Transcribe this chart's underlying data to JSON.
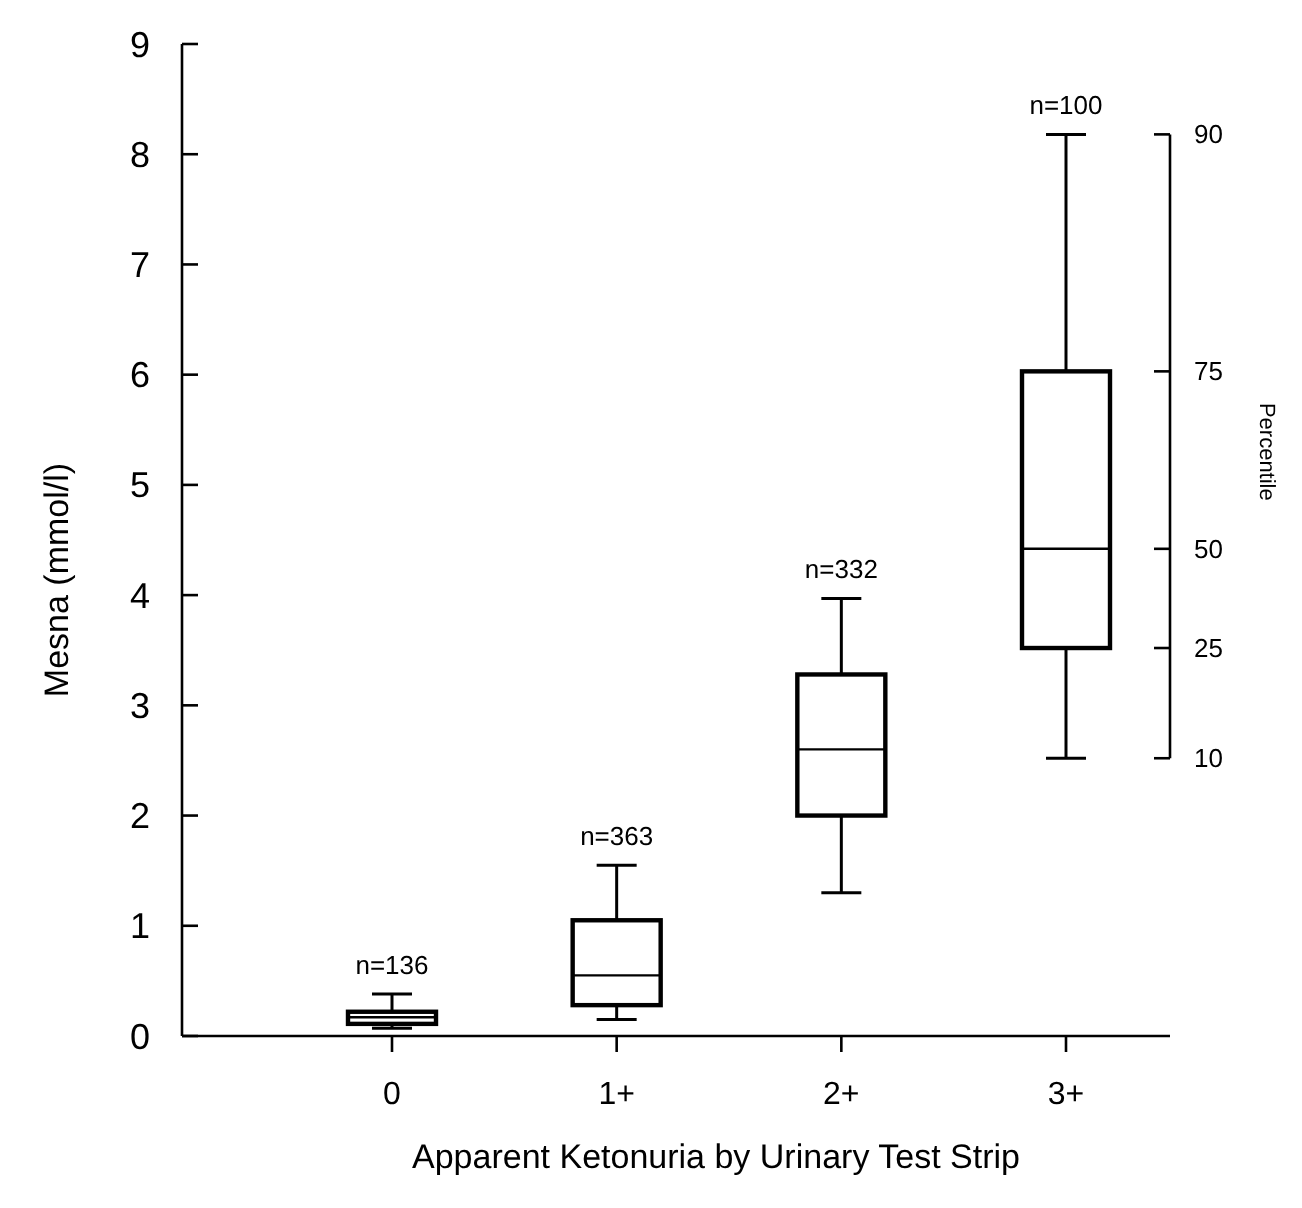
{
  "chart_data": {
    "type": "box",
    "xlabel": "Apparent Ketonuria by Urinary Test Strip",
    "ylabel": "Mesna (mmol/l)",
    "y2label": "Percentile",
    "categories": [
      "0",
      "1+",
      "2+",
      "3+"
    ],
    "boxes": [
      {
        "low": 0.07,
        "q1": 0.11,
        "median": 0.17,
        "q3": 0.22,
        "high": 0.38
      },
      {
        "low": 0.15,
        "q1": 0.28,
        "median": 0.55,
        "q3": 1.05,
        "high": 1.55
      },
      {
        "low": 1.3,
        "q1": 2.0,
        "median": 2.6,
        "q3": 3.28,
        "high": 3.97
      },
      {
        "low": 2.52,
        "q1": 3.52,
        "median": 4.42,
        "q3": 6.03,
        "high": 8.18
      }
    ],
    "color": "#000000",
    "ylim": [
      0,
      9
    ],
    "yticks": [
      0,
      1,
      2,
      3,
      4,
      5,
      6,
      7,
      8,
      9
    ],
    "annotations": [
      "10",
      "25",
      "50",
      "75",
      "90",
      {
        "text": "n=136",
        "x": "0",
        "y": 0.38
      },
      {
        "text": "n=363",
        "x": "1+",
        "y": 1.55
      },
      {
        "text": "n=332",
        "x": "2+",
        "y": 3.97
      },
      {
        "text": "n=100",
        "x": "3+",
        "y": 8.18
      }
    ],
    "grid": false
  }
}
